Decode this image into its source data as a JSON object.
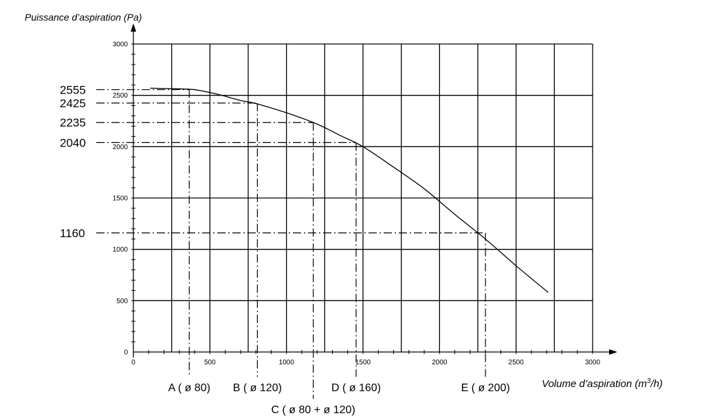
{
  "chart_data": {
    "type": "line",
    "ylabel": "Puissance d’aspiration (Pa)",
    "xlabel": "Volume d’aspiration (m",
    "xlabel_sup": "3",
    "xlabel_end": "/h)",
    "xlim": [
      0,
      3000
    ],
    "ylim": [
      0,
      3000
    ],
    "grid": true,
    "x_ticks": [
      "0",
      "500",
      "1000",
      "1500",
      "2000",
      "2500",
      "3000"
    ],
    "y_ticks": [
      "0",
      "500",
      "1000",
      "1500",
      "2000",
      "2500",
      "3000"
    ],
    "series": [
      {
        "x": [
          110,
          250,
          400,
          550,
          700,
          800,
          1000,
          1200,
          1350,
          1500,
          1700,
          1900,
          2100,
          2300,
          2500,
          2710
        ],
        "y": [
          2570,
          2565,
          2555,
          2510,
          2450,
          2420,
          2330,
          2220,
          2110,
          2000,
          1800,
          1590,
          1340,
          1100,
          840,
          580
        ]
      }
    ],
    "operating_points": [
      {
        "label": "A ( ø 80)",
        "x": 365,
        "y": 2555,
        "y_label": "2555"
      },
      {
        "label": "B ( ø 120)",
        "x": 810,
        "y": 2425,
        "y_label": "2425"
      },
      {
        "label": "C ( ø 80 + ø 120)",
        "x": 1175,
        "y": 2235,
        "y_label": "2235"
      },
      {
        "label": "D ( ø 160)",
        "x": 1455,
        "y": 2040,
        "y_label": "2040"
      },
      {
        "label": "E ( ø 200)",
        "x": 2300,
        "y": 1160,
        "y_label": "1160"
      }
    ]
  }
}
